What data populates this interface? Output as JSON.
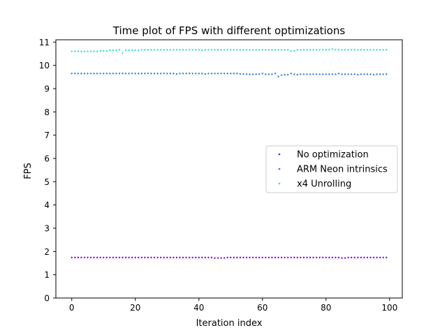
{
  "chart_data": {
    "type": "scatter",
    "title": "Time plot of FPS with different optimizations",
    "xlabel": "Iteration index",
    "ylabel": "FPS",
    "xlim": [
      -5,
      104
    ],
    "ylim": [
      0,
      11.1
    ],
    "xticks": [
      0,
      20,
      40,
      60,
      80,
      100
    ],
    "yticks": [
      0,
      1,
      2,
      3,
      4,
      5,
      6,
      7,
      8,
      9,
      10,
      11
    ],
    "grid": false,
    "legend_position": "center-right",
    "series": [
      {
        "name": "No optimization",
        "color": "#8000ff",
        "x": [
          0,
          1,
          2,
          3,
          4,
          5,
          6,
          7,
          8,
          9,
          10,
          11,
          12,
          13,
          14,
          15,
          16,
          17,
          18,
          19,
          20,
          21,
          22,
          23,
          24,
          25,
          26,
          27,
          28,
          29,
          30,
          31,
          32,
          33,
          34,
          35,
          36,
          37,
          38,
          39,
          40,
          41,
          42,
          43,
          44,
          45,
          46,
          47,
          48,
          49,
          50,
          51,
          52,
          53,
          54,
          55,
          56,
          57,
          58,
          59,
          60,
          61,
          62,
          63,
          64,
          65,
          66,
          67,
          68,
          69,
          70,
          71,
          72,
          73,
          74,
          75,
          76,
          77,
          78,
          79,
          80,
          81,
          82,
          83,
          84,
          85,
          86,
          87,
          88,
          89,
          90,
          91,
          92,
          93,
          94,
          95,
          96,
          97,
          98,
          99
        ],
        "values": [
          1.74,
          1.74,
          1.74,
          1.74,
          1.74,
          1.74,
          1.74,
          1.74,
          1.74,
          1.74,
          1.74,
          1.74,
          1.74,
          1.74,
          1.74,
          1.74,
          1.74,
          1.74,
          1.74,
          1.74,
          1.74,
          1.74,
          1.74,
          1.74,
          1.74,
          1.74,
          1.74,
          1.74,
          1.74,
          1.74,
          1.74,
          1.74,
          1.74,
          1.74,
          1.74,
          1.74,
          1.74,
          1.74,
          1.74,
          1.74,
          1.74,
          1.74,
          1.74,
          1.74,
          1.74,
          1.72,
          1.72,
          1.72,
          1.72,
          1.74,
          1.74,
          1.74,
          1.74,
          1.74,
          1.74,
          1.74,
          1.74,
          1.74,
          1.74,
          1.74,
          1.74,
          1.74,
          1.74,
          1.74,
          1.74,
          1.74,
          1.74,
          1.74,
          1.74,
          1.74,
          1.74,
          1.74,
          1.74,
          1.74,
          1.74,
          1.74,
          1.74,
          1.74,
          1.74,
          1.74,
          1.74,
          1.74,
          1.74,
          1.74,
          1.74,
          1.72,
          1.72,
          1.74,
          1.74,
          1.74,
          1.74,
          1.74,
          1.74,
          1.74,
          1.74,
          1.74,
          1.74,
          1.74,
          1.74,
          1.74
        ]
      },
      {
        "name": "ARM Neon intrinsics",
        "color": "#2c7fe0",
        "x": [
          0,
          1,
          2,
          3,
          4,
          5,
          6,
          7,
          8,
          9,
          10,
          11,
          12,
          13,
          14,
          15,
          16,
          17,
          18,
          19,
          20,
          21,
          22,
          23,
          24,
          25,
          26,
          27,
          28,
          29,
          30,
          31,
          32,
          33,
          34,
          35,
          36,
          37,
          38,
          39,
          40,
          41,
          42,
          43,
          44,
          45,
          46,
          47,
          48,
          49,
          50,
          51,
          52,
          53,
          54,
          55,
          56,
          57,
          58,
          59,
          60,
          61,
          62,
          63,
          64,
          65,
          66,
          67,
          68,
          69,
          70,
          71,
          72,
          73,
          74,
          75,
          76,
          77,
          78,
          79,
          80,
          81,
          82,
          83,
          84,
          85,
          86,
          87,
          88,
          89,
          90,
          91,
          92,
          93,
          94,
          95,
          96,
          97,
          98,
          99
        ],
        "values": [
          9.65,
          9.65,
          9.65,
          9.65,
          9.65,
          9.65,
          9.65,
          9.65,
          9.65,
          9.65,
          9.65,
          9.65,
          9.65,
          9.65,
          9.65,
          9.65,
          9.65,
          9.65,
          9.65,
          9.65,
          9.65,
          9.65,
          9.65,
          9.65,
          9.65,
          9.65,
          9.65,
          9.65,
          9.65,
          9.65,
          9.65,
          9.65,
          9.65,
          9.63,
          9.65,
          9.65,
          9.65,
          9.65,
          9.65,
          9.65,
          9.65,
          9.65,
          9.63,
          9.65,
          9.65,
          9.65,
          9.65,
          9.65,
          9.65,
          9.65,
          9.65,
          9.65,
          9.65,
          9.63,
          9.63,
          9.62,
          9.62,
          9.62,
          9.62,
          9.62,
          9.65,
          9.62,
          9.62,
          9.62,
          9.65,
          9.52,
          9.58,
          9.6,
          9.6,
          9.65,
          9.62,
          9.6,
          9.62,
          9.62,
          9.62,
          9.62,
          9.62,
          9.62,
          9.62,
          9.62,
          9.62,
          9.62,
          9.62,
          9.62,
          9.65,
          9.62,
          9.62,
          9.62,
          9.62,
          9.62,
          9.6,
          9.62,
          9.62,
          9.62,
          9.62,
          9.6,
          9.62,
          9.62,
          9.62,
          9.62
        ]
      },
      {
        "name": "x4 Unrolling",
        "color": "#1fe3d9",
        "x": [
          0,
          1,
          2,
          3,
          4,
          5,
          6,
          7,
          8,
          9,
          10,
          11,
          12,
          13,
          14,
          15,
          16,
          17,
          18,
          19,
          20,
          21,
          22,
          23,
          24,
          25,
          26,
          27,
          28,
          29,
          30,
          31,
          32,
          33,
          34,
          35,
          36,
          37,
          38,
          39,
          40,
          41,
          42,
          43,
          44,
          45,
          46,
          47,
          48,
          49,
          50,
          51,
          52,
          53,
          54,
          55,
          56,
          57,
          58,
          59,
          60,
          61,
          62,
          63,
          64,
          65,
          66,
          67,
          68,
          69,
          70,
          71,
          72,
          73,
          74,
          75,
          76,
          77,
          78,
          79,
          80,
          81,
          82,
          83,
          84,
          85,
          86,
          87,
          88,
          89,
          90,
          91,
          92,
          93,
          94,
          95,
          96,
          97,
          98,
          99
        ],
        "values": [
          10.6,
          10.6,
          10.6,
          10.6,
          10.6,
          10.6,
          10.6,
          10.6,
          10.6,
          10.62,
          10.62,
          10.62,
          10.65,
          10.65,
          10.65,
          10.67,
          10.52,
          10.65,
          10.65,
          10.65,
          10.65,
          10.65,
          10.67,
          10.67,
          10.67,
          10.67,
          10.67,
          10.67,
          10.67,
          10.67,
          10.67,
          10.67,
          10.67,
          10.67,
          10.67,
          10.67,
          10.67,
          10.67,
          10.67,
          10.67,
          10.67,
          10.65,
          10.67,
          10.67,
          10.67,
          10.67,
          10.67,
          10.67,
          10.67,
          10.67,
          10.67,
          10.67,
          10.67,
          10.67,
          10.67,
          10.67,
          10.67,
          10.67,
          10.67,
          10.67,
          10.67,
          10.67,
          10.67,
          10.67,
          10.67,
          10.67,
          10.67,
          10.67,
          10.67,
          10.62,
          10.62,
          10.67,
          10.67,
          10.67,
          10.67,
          10.67,
          10.67,
          10.67,
          10.67,
          10.67,
          10.67,
          10.67,
          10.7,
          10.67,
          10.67,
          10.67,
          10.67,
          10.67,
          10.67,
          10.67,
          10.67,
          10.67,
          10.67,
          10.67,
          10.67,
          10.67,
          10.67,
          10.67,
          10.67,
          10.67
        ]
      }
    ]
  }
}
